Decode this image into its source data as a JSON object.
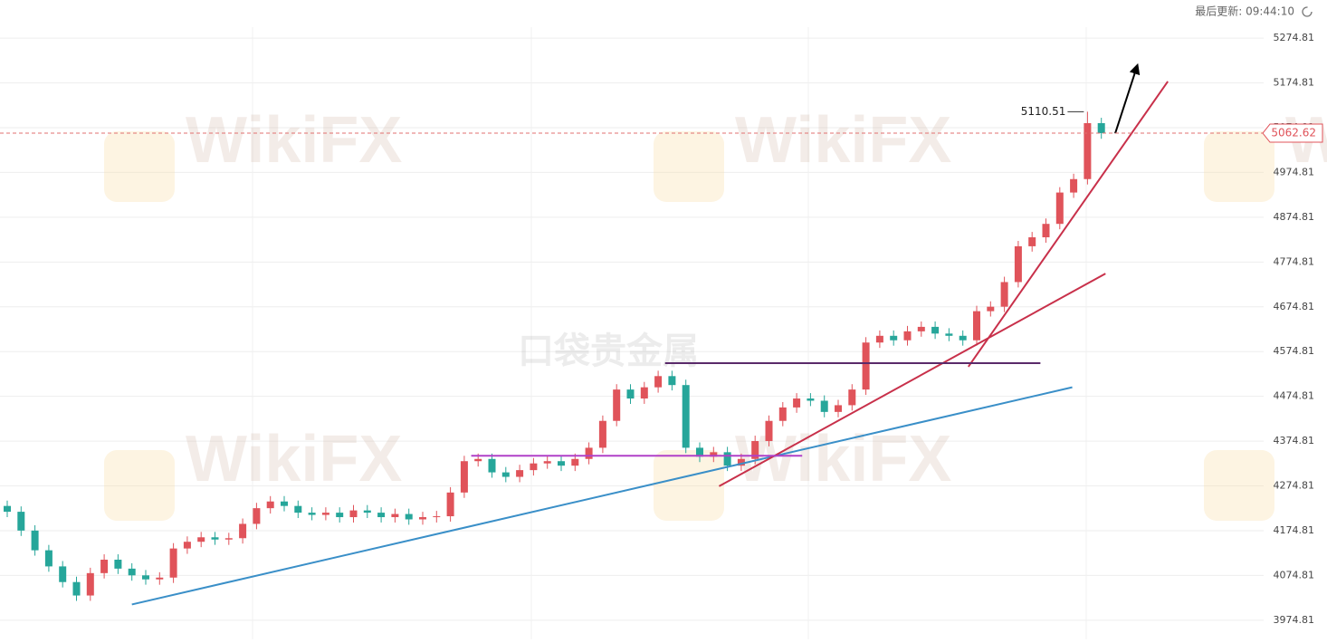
{
  "last_update": "最后更新: 09:44:10",
  "watermark": "WikiFX",
  "center_watermark": "口袋贵金属",
  "chart_data": {
    "type": "candlestick",
    "ylim": [
      3932,
      5360
    ],
    "yticks": [
      {
        "value": 3974.81,
        "label": "3974.81"
      },
      {
        "value": 4074.81,
        "label": "4074.81"
      },
      {
        "value": 4174.81,
        "label": "4174.81"
      },
      {
        "value": 4274.81,
        "label": "4274.81"
      },
      {
        "value": 4374.81,
        "label": "4374.81"
      },
      {
        "value": 4474.81,
        "label": "4474.81"
      },
      {
        "value": 4574.81,
        "label": "4574.81"
      },
      {
        "value": 4674.81,
        "label": "4674.81"
      },
      {
        "value": 4774.81,
        "label": "4774.81"
      },
      {
        "value": 4874.81,
        "label": "4874.81"
      },
      {
        "value": 4974.81,
        "label": "4974.81"
      },
      {
        "value": 5074.81,
        "label": "5074.81"
      },
      {
        "value": 5174.81,
        "label": "5174.81"
      },
      {
        "value": 5274.81,
        "label": "5274.81"
      }
    ],
    "grid": true,
    "up_color": "#e0535a",
    "down_color": "#26a69a",
    "open": [
      4230,
      4217,
      4175,
      4131,
      4095,
      4060,
      4030,
      4080,
      4110,
      4090,
      4075,
      4066,
      4070,
      4135,
      4150,
      4160,
      4155,
      4158,
      4190,
      4225,
      4240,
      4230,
      4215,
      4210,
      4215,
      4205,
      4220,
      4215,
      4205,
      4212,
      4200,
      4205,
      4207,
      4260,
      4330,
      4335,
      4305,
      4295,
      4310,
      4325,
      4330,
      4320,
      4335,
      4360,
      4420,
      4490,
      4470,
      4495,
      4520,
      4500,
      4360,
      4340,
      4350,
      4320,
      4335,
      4375,
      4420,
      4450,
      4470,
      4465,
      4440,
      4455,
      4490,
      4595,
      4610,
      4600,
      4620,
      4630,
      4615,
      4610,
      4600,
      4665,
      4675,
      4730,
      4810,
      4830,
      4860,
      4930,
      4960,
      5085
    ],
    "high": [
      4242,
      4229,
      4187,
      4143,
      4107,
      4072,
      4092,
      4122,
      4122,
      4102,
      4087,
      4082,
      4147,
      4162,
      4172,
      4172,
      4170,
      4202,
      4237,
      4252,
      4252,
      4242,
      4227,
      4227,
      4227,
      4232,
      4232,
      4227,
      4224,
      4224,
      4217,
      4219,
      4272,
      4342,
      4347,
      4347,
      4317,
      4322,
      4337,
      4342,
      4342,
      4347,
      4372,
      4432,
      4502,
      4502,
      4507,
      4532,
      4532,
      4512,
      4372,
      4362,
      4362,
      4347,
      4387,
      4432,
      4462,
      4482,
      4482,
      4477,
      4467,
      4502,
      4607,
      4622,
      4622,
      4632,
      4642,
      4642,
      4627,
      4622,
      4677,
      4687,
      4742,
      4822,
      4842,
      4872,
      4942,
      4972,
      5110.51,
      5097
    ],
    "low": [
      4205,
      4163,
      4119,
      4083,
      4048,
      4018,
      4018,
      4068,
      4078,
      4063,
      4054,
      4054,
      4058,
      4123,
      4138,
      4143,
      4143,
      4146,
      4178,
      4213,
      4218,
      4203,
      4198,
      4198,
      4193,
      4193,
      4203,
      4193,
      4193,
      4188,
      4188,
      4193,
      4195,
      4248,
      4318,
      4293,
      4283,
      4283,
      4298,
      4313,
      4308,
      4308,
      4323,
      4348,
      4408,
      4458,
      4458,
      4483,
      4488,
      4348,
      4328,
      4328,
      4308,
      4308,
      4323,
      4363,
      4408,
      4438,
      4453,
      4428,
      4428,
      4443,
      4478,
      4583,
      4588,
      4588,
      4608,
      4603,
      4598,
      4588,
      4588,
      4653,
      4663,
      4718,
      4798,
      4818,
      4848,
      4918,
      4948,
      5050
    ],
    "close": [
      4217,
      4175,
      4131,
      4095,
      4060,
      4030,
      4080,
      4110,
      4090,
      4075,
      4066,
      4070,
      4135,
      4150,
      4160,
      4155,
      4158,
      4190,
      4225,
      4240,
      4230,
      4215,
      4210,
      4215,
      4205,
      4220,
      4215,
      4205,
      4212,
      4200,
      4205,
      4207,
      4260,
      4330,
      4335,
      4305,
      4295,
      4310,
      4325,
      4330,
      4320,
      4335,
      4360,
      4420,
      4490,
      4470,
      4495,
      4520,
      4500,
      4360,
      4340,
      4350,
      4320,
      4335,
      4375,
      4420,
      4450,
      4470,
      4465,
      4440,
      4455,
      4490,
      4595,
      4610,
      4600,
      4620,
      4630,
      4615,
      4610,
      4600,
      4665,
      4675,
      4730,
      4810,
      4830,
      4860,
      4930,
      4960,
      5085,
      5062.62
    ],
    "trendlines": [
      {
        "color": "#3a8fc8",
        "x": [
          9.0,
          76.9
        ],
        "y": [
          4010,
          4495
        ]
      },
      {
        "color": "#c8304a",
        "x": [
          51.4,
          79.3
        ],
        "y": [
          4274,
          4749
        ]
      },
      {
        "color": "#c8304a",
        "x": [
          69.4,
          83.8
        ],
        "y": [
          4541,
          5178
        ]
      },
      {
        "color": "#b040c8",
        "x": [
          33.5,
          57.4
        ],
        "y": [
          4342,
          4342
        ]
      },
      {
        "color": "#5a2a6a",
        "x": [
          47.5,
          74.6
        ],
        "y": [
          4549,
          4549
        ]
      },
      {
        "color": "#000000",
        "x": [
          80.0,
          81.6
        ],
        "y": [
          5062,
          5214
        ],
        "arrow": true
      }
    ]
  }
}
